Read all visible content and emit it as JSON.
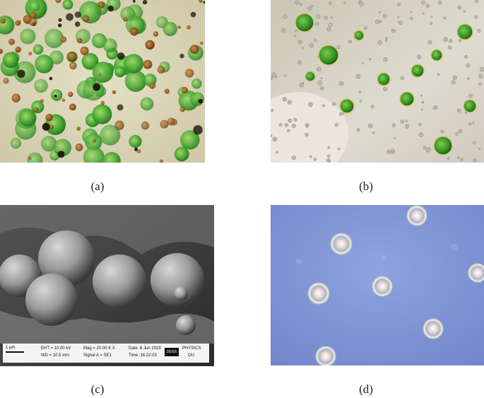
{
  "panels": [
    {
      "id": "a",
      "caption": "(a)"
    },
    {
      "id": "b",
      "caption": "(b)"
    },
    {
      "id": "c",
      "caption": "(c)"
    },
    {
      "id": "d",
      "caption": "(d)"
    }
  ],
  "sem_info": {
    "scale": "1 μm",
    "eht": "EHT = 10.00 kV",
    "wd": "WD = 10.5 mm",
    "mag": "Mag = 20.00 K X",
    "signal": "Signal A = SE1",
    "date": "Date :6 Jun 2019",
    "time": "Time :16:22:03",
    "brand": "ZEISS",
    "dept_line1": "PHYSICS",
    "dept_line2": "OU"
  }
}
